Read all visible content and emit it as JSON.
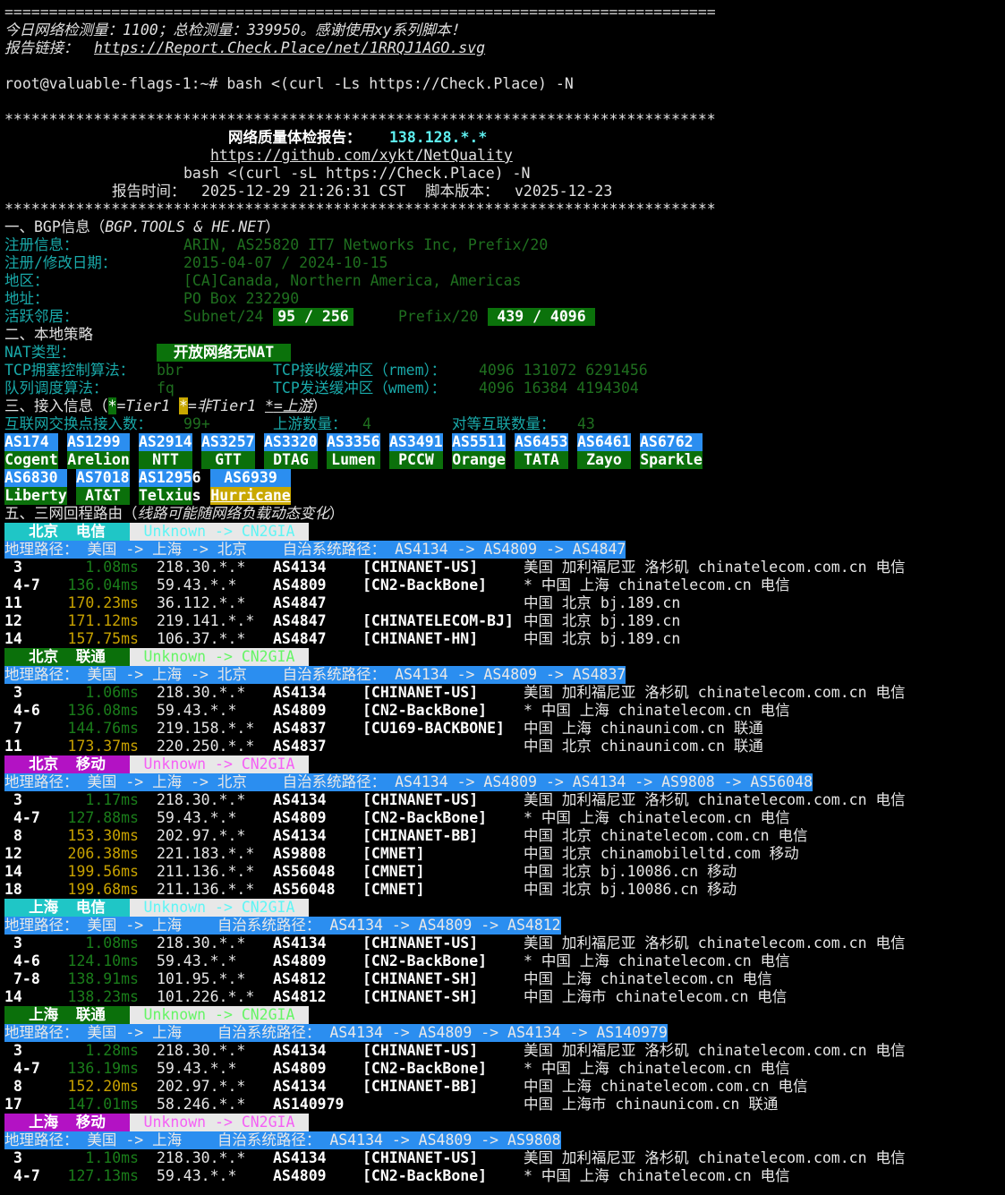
{
  "header": {
    "separator": "================================================================================",
    "stats": "今日网络检测量：1100；总检测量：339950。感谢使用xy系列脚本！",
    "report_link_label": "报告链接：",
    "report_link": "https://Report.Check.Place/net/1RRQJ1AGO.svg",
    "prompt": "root@valuable-flags-1:~# bash <(curl -Ls https://Check.Place) -N"
  },
  "report": {
    "stars": "********************************************************************************",
    "title": "网络质量体检报告：",
    "ip": "138.128.*.*",
    "repo": "https://github.com/xykt/NetQuality",
    "cmd": "bash <(curl -sL https://Check.Place) -N",
    "time_label": "报告时间：",
    "time": "2025-12-29 21:26:31 CST",
    "version_label": "脚本版本：",
    "version": "v2025-12-23"
  },
  "bgp": {
    "heading": "一、BGP信息（",
    "heading_source": "BGP.TOOLS & HE.NET",
    "heading_end": "）",
    "reg_label": "注册信息：",
    "reg_value": "ARIN, AS25820 IT7 Networks Inc, Prefix/20",
    "date_label": "注册/修改日期：",
    "date_value": "2015-04-07 / 2024-10-15",
    "region_label": "地区：",
    "region_value": "[CA]Canada, Northern America, Americas",
    "addr_label": "地址：",
    "addr_value": "PO Box 232290",
    "neighbor_label": "活跃邻居：",
    "subnet_label": "Subnet/24",
    "subnet_value": "95 / 256",
    "prefix_label": "Prefix/20",
    "prefix_value": "439 / 4096"
  },
  "local": {
    "heading": "二、本地策略",
    "nat_label": "NAT类型：",
    "nat_value": "开放网络无NAT",
    "cc_label": "TCP拥塞控制算法：",
    "cc_value": "bbr",
    "rmem_label": "TCP接收缓冲区（rmem）：",
    "rmem_value": "4096 131072 6291456",
    "qdisc_label": "队列调度算法：",
    "qdisc_value": "fq",
    "wmem_label": "TCP发送缓冲区（wmem）：",
    "wmem_value": "4096 16384 4194304"
  },
  "access": {
    "heading": "三、接入信息（",
    "legend_tier1_mark": "*",
    "legend_tier1": "=Tier1 ",
    "legend_nontier1_mark": "*",
    "legend_nontier1": "=非Tier1 ",
    "legend_upstream_mark": "*",
    "legend_upstream": "=上游",
    "heading_end": "）",
    "ix_label": "互联网交换点接入数：",
    "ix_value": "99+",
    "upstream_label": "上游数量：",
    "upstream_value": "4",
    "peer_label": "对等互联数量：",
    "peer_value": "43",
    "colors": {
      "tile_top": "#2b8ef0",
      "tier1": "#0b700b",
      "non_tier1": "#c9a800"
    },
    "tiles": [
      {
        "asn": "AS174",
        "name": "Cogent",
        "type": "tier1"
      },
      {
        "asn": "AS1299",
        "name": "Arelion",
        "type": "tier1"
      },
      {
        "asn": "AS2914",
        "name": "NTT",
        "type": "tier1"
      },
      {
        "asn": "AS3257",
        "name": "GTT",
        "type": "tier1"
      },
      {
        "asn": "AS3320",
        "name": "DTAG",
        "type": "tier1"
      },
      {
        "asn": "AS3356",
        "name": "Lumen",
        "type": "tier1"
      },
      {
        "asn": "AS3491",
        "name": "PCCW",
        "type": "tier1"
      },
      {
        "asn": "AS5511",
        "name": "Orange",
        "type": "tier1"
      },
      {
        "asn": "AS6453",
        "name": "TATA",
        "type": "tier1"
      },
      {
        "asn": "AS6461",
        "name": "Zayo",
        "type": "tier1"
      },
      {
        "asn": "AS6762",
        "name": "Sparkle",
        "type": "tier1"
      },
      {
        "asn": "AS6830",
        "name": "Liberty",
        "type": "tier1"
      },
      {
        "asn": "AS7018",
        "name": "AT&T",
        "type": "tier1"
      },
      {
        "asn": "AS12956",
        "name": "Telxius",
        "type": "tier1"
      },
      {
        "asn": "AS6939",
        "name": "Hurricane",
        "type": "non_tier1_upstream"
      }
    ]
  },
  "routes_section": {
    "heading": "五、三网回程路由（",
    "note": "线路可能随网络负载动态变化",
    "heading_end": "）"
  },
  "colors": {
    "latency_good": "#1a7d1a",
    "latency_warn": "#c8a200",
    "telecom": "#1fc6c6",
    "unicom": "#0b700b",
    "mobile": "#b312c4",
    "telecom_text": "#5ff5f5",
    "unicom_text": "#66f566",
    "mobile_text": "#f560f5"
  },
  "routes": [
    {
      "city": "北京",
      "isp": "电信",
      "carrier": "telecom",
      "route_type": "Unknown -> CN2GIA",
      "geo_label": "地理路径：",
      "geo_path": "美国 -> 上海 -> 北京",
      "as_label": "自治系统路径：",
      "as_path": "AS4134 -> AS4809 -> AS4847",
      "hops": [
        {
          "hop": "3",
          "latency": "1.08ms",
          "level": "good",
          "ip": "218.30.*.*",
          "asn": "AS4134",
          "name": "[CHINANET-US]",
          "location": "美国 加利福尼亚 洛杉矶 chinatelecom.com.cn 电信"
        },
        {
          "hop": "4-7",
          "latency": "136.04ms",
          "level": "good",
          "ip": "59.43.*.*",
          "asn": "AS4809",
          "name": "[CN2-BackBone]",
          "location": "* 中国 上海 chinatelecom.cn 电信"
        },
        {
          "hop": "11",
          "latency": "170.23ms",
          "level": "warn",
          "ip": "36.112.*.*",
          "asn": "AS4847",
          "name": "",
          "location": "中国 北京 bj.189.cn"
        },
        {
          "hop": "12",
          "latency": "171.12ms",
          "level": "warn",
          "ip": "219.141.*.*",
          "asn": "AS4847",
          "name": "[CHINATELECOM-BJ]",
          "location": "中国 北京 bj.189.cn"
        },
        {
          "hop": "14",
          "latency": "157.75ms",
          "level": "warn",
          "ip": "106.37.*.*",
          "asn": "AS4847",
          "name": "[CHINANET-HN]",
          "location": "中国 北京 bj.189.cn"
        }
      ]
    },
    {
      "city": "北京",
      "isp": "联通",
      "carrier": "unicom",
      "route_type": "Unknown -> CN2GIA",
      "geo_label": "地理路径：",
      "geo_path": "美国 -> 上海 -> 北京",
      "as_label": "自治系统路径：",
      "as_path": "AS4134 -> AS4809 -> AS4837",
      "hops": [
        {
          "hop": "3",
          "latency": "1.06ms",
          "level": "good",
          "ip": "218.30.*.*",
          "asn": "AS4134",
          "name": "[CHINANET-US]",
          "location": "美国 加利福尼亚 洛杉矶 chinatelecom.com.cn 电信"
        },
        {
          "hop": "4-6",
          "latency": "136.08ms",
          "level": "good",
          "ip": "59.43.*.*",
          "asn": "AS4809",
          "name": "[CN2-BackBone]",
          "location": "* 中国 上海 chinatelecom.cn 电信"
        },
        {
          "hop": "7",
          "latency": "144.76ms",
          "level": "good",
          "ip": "219.158.*.*",
          "asn": "AS4837",
          "name": "[CU169-BACKBONE]",
          "location": "中国 上海 chinaunicom.cn 联通"
        },
        {
          "hop": "11",
          "latency": "173.37ms",
          "level": "warn",
          "ip": "220.250.*.*",
          "asn": "AS4837",
          "name": "",
          "location": "中国 北京 chinaunicom.cn 联通"
        }
      ]
    },
    {
      "city": "北京",
      "isp": "移动",
      "carrier": "mobile",
      "route_type": "Unknown -> CN2GIA",
      "geo_label": "地理路径：",
      "geo_path": "美国 -> 上海 -> 北京",
      "as_label": "自治系统路径：",
      "as_path": "AS4134 -> AS4809 -> AS4134 -> AS9808 -> AS56048",
      "hops": [
        {
          "hop": "3",
          "latency": "1.17ms",
          "level": "good",
          "ip": "218.30.*.*",
          "asn": "AS4134",
          "name": "[CHINANET-US]",
          "location": "美国 加利福尼亚 洛杉矶 chinatelecom.com.cn 电信"
        },
        {
          "hop": "4-7",
          "latency": "127.88ms",
          "level": "good",
          "ip": "59.43.*.*",
          "asn": "AS4809",
          "name": "[CN2-BackBone]",
          "location": "* 中国 上海 chinatelecom.cn 电信"
        },
        {
          "hop": "8",
          "latency": "153.30ms",
          "level": "warn",
          "ip": "202.97.*.*",
          "asn": "AS4134",
          "name": "[CHINANET-BB]",
          "location": "中国 北京 chinatelecom.com.cn 电信"
        },
        {
          "hop": "12",
          "latency": "206.38ms",
          "level": "warn",
          "ip": "221.183.*.*",
          "asn": "AS9808",
          "name": "[CMNET]",
          "location": "中国 北京 chinamobileltd.com 移动"
        },
        {
          "hop": "14",
          "latency": "199.56ms",
          "level": "warn",
          "ip": "211.136.*.*",
          "asn": "AS56048",
          "name": "[CMNET]",
          "location": "中国 北京 bj.10086.cn 移动"
        },
        {
          "hop": "18",
          "latency": "199.68ms",
          "level": "warn",
          "ip": "211.136.*.*",
          "asn": "AS56048",
          "name": "[CMNET]",
          "location": "中国 北京 bj.10086.cn 移动"
        }
      ]
    },
    {
      "city": "上海",
      "isp": "电信",
      "carrier": "telecom",
      "route_type": "Unknown -> CN2GIA",
      "geo_label": "地理路径：",
      "geo_path": "美国 -> 上海",
      "as_label": "自治系统路径：",
      "as_path": "AS4134 -> AS4809 -> AS4812",
      "hops": [
        {
          "hop": "3",
          "latency": "1.08ms",
          "level": "good",
          "ip": "218.30.*.*",
          "asn": "AS4134",
          "name": "[CHINANET-US]",
          "location": "美国 加利福尼亚 洛杉矶 chinatelecom.com.cn 电信"
        },
        {
          "hop": "4-6",
          "latency": "124.10ms",
          "level": "good",
          "ip": "59.43.*.*",
          "asn": "AS4809",
          "name": "[CN2-BackBone]",
          "location": "* 中国 上海 chinatelecom.cn 电信"
        },
        {
          "hop": "7-8",
          "latency": "138.91ms",
          "level": "good",
          "ip": "101.95.*.*",
          "asn": "AS4812",
          "name": "[CHINANET-SH]",
          "location": "中国 上海 chinatelecom.cn 电信"
        },
        {
          "hop": "14",
          "latency": "138.23ms",
          "level": "good",
          "ip": "101.226.*.*",
          "asn": "AS4812",
          "name": "[CHINANET-SH]",
          "location": "中国 上海市 chinatelecom.cn 电信"
        }
      ]
    },
    {
      "city": "上海",
      "isp": "联通",
      "carrier": "unicom",
      "route_type": "Unknown -> CN2GIA",
      "geo_label": "地理路径：",
      "geo_path": "美国 -> 上海",
      "as_label": "自治系统路径：",
      "as_path": "AS4134 -> AS4809 -> AS4134 -> AS140979",
      "hops": [
        {
          "hop": "3",
          "latency": "1.28ms",
          "level": "good",
          "ip": "218.30.*.*",
          "asn": "AS4134",
          "name": "[CHINANET-US]",
          "location": "美国 加利福尼亚 洛杉矶 chinatelecom.com.cn 电信"
        },
        {
          "hop": "4-7",
          "latency": "136.19ms",
          "level": "good",
          "ip": "59.43.*.*",
          "asn": "AS4809",
          "name": "[CN2-BackBone]",
          "location": "* 中国 上海 chinatelecom.cn 电信"
        },
        {
          "hop": "8",
          "latency": "152.20ms",
          "level": "warn",
          "ip": "202.97.*.*",
          "asn": "AS4134",
          "name": "[CHINANET-BB]",
          "location": "中国 上海 chinatelecom.com.cn 电信"
        },
        {
          "hop": "17",
          "latency": "147.01ms",
          "level": "good",
          "ip": "58.246.*.*",
          "asn": "AS140979",
          "name": "",
          "location": "中国 上海市 chinaunicom.cn 联通"
        }
      ]
    },
    {
      "city": "上海",
      "isp": "移动",
      "carrier": "mobile",
      "route_type": "Unknown -> CN2GIA",
      "geo_label": "地理路径：",
      "geo_path": "美国 -> 上海",
      "as_label": "自治系统路径：",
      "as_path": "AS4134 -> AS4809 -> AS9808",
      "hops": [
        {
          "hop": "3",
          "latency": "1.10ms",
          "level": "good",
          "ip": "218.30.*.*",
          "asn": "AS4134",
          "name": "[CHINANET-US]",
          "location": "美国 加利福尼亚 洛杉矶 chinatelecom.com.cn 电信"
        },
        {
          "hop": "4-7",
          "latency": "127.13ms",
          "level": "good",
          "ip": "59.43.*.*",
          "asn": "AS4809",
          "name": "[CN2-BackBone]",
          "location": "* 中国 上海 chinatelecom.cn 电信"
        }
      ]
    }
  ]
}
